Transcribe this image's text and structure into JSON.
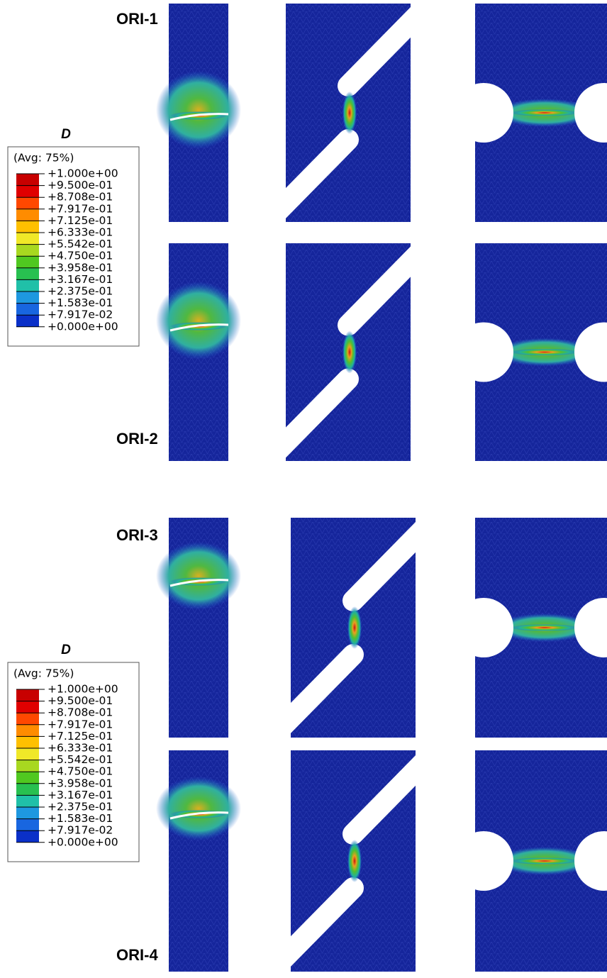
{
  "figure": {
    "rows": [
      {
        "label": "ORI-1"
      },
      {
        "label": "ORI-2"
      },
      {
        "label": "ORI-3"
      },
      {
        "label": "ORI-4"
      }
    ],
    "legends": [
      {
        "title": "D",
        "subtitle": "(Avg: 75%)",
        "levels": [
          "+1.000e+00",
          "+9.500e-01",
          "+8.708e-01",
          "+7.917e-01",
          "+7.125e-01",
          "+6.333e-01",
          "+5.542e-01",
          "+4.750e-01",
          "+3.958e-01",
          "+3.167e-01",
          "+2.375e-01",
          "+1.583e-01",
          "+7.917e-02",
          "+0.000e+00"
        ]
      },
      {
        "title": "D",
        "subtitle": "(Avg: 75%)",
        "levels": [
          "+1.000e+00",
          "+9.500e-01",
          "+8.708e-01",
          "+7.917e-01",
          "+7.125e-01",
          "+6.333e-01",
          "+5.542e-01",
          "+4.750e-01",
          "+3.958e-01",
          "+3.167e-01",
          "+2.375e-01",
          "+1.583e-01",
          "+7.917e-02",
          "+0.000e+00"
        ]
      }
    ]
  }
}
